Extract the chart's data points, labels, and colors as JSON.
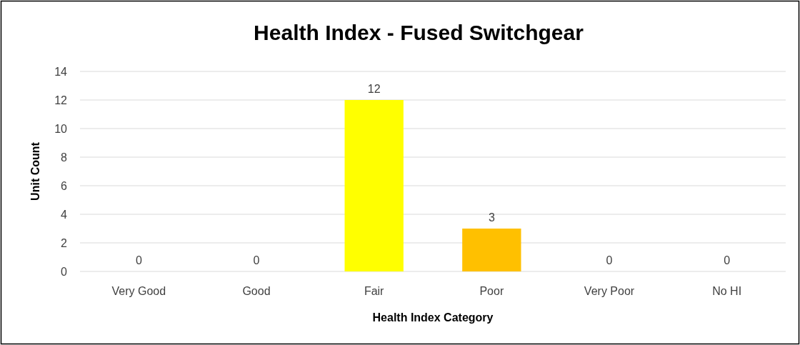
{
  "chart_data": {
    "type": "bar",
    "title": "Health Index - Fused Switchgear",
    "xlabel": "Health Index Category",
    "ylabel": "Unit Count",
    "categories": [
      "Very Good",
      "Good",
      "Fair",
      "Poor",
      "Very Poor",
      "No HI"
    ],
    "values": [
      0,
      0,
      12,
      3,
      0,
      0
    ],
    "colors": [
      "#00b050",
      "#92d050",
      "#ffff00",
      "#ffc000",
      "#ff0000",
      "#7f7f7f"
    ],
    "ylim": [
      0,
      14
    ],
    "yticks": [
      0,
      2,
      4,
      6,
      8,
      10,
      12,
      14
    ],
    "grid": "y",
    "data_labels": true
  }
}
